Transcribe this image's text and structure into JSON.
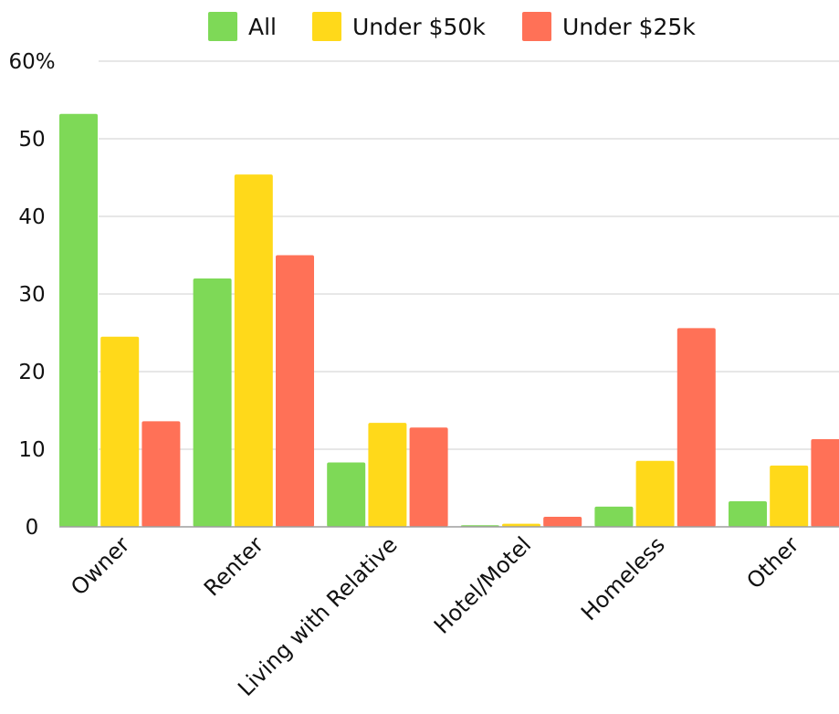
{
  "chart_data": {
    "type": "bar",
    "title": "",
    "xlabel": "",
    "ylabel": "",
    "categories": [
      "Owner",
      "Renter",
      "Living with Relative",
      "Hotel/Motel",
      "Homeless",
      "Other"
    ],
    "series": [
      {
        "name": "All",
        "color": "#7ED957",
        "values": [
          53.2,
          32.0,
          8.3,
          0.2,
          2.6,
          3.3
        ]
      },
      {
        "name": "Under $50k",
        "color": "#FFD91A",
        "values": [
          24.5,
          45.4,
          13.4,
          0.4,
          8.5,
          7.9
        ]
      },
      {
        "name": "Under $25k",
        "color": "#FF7157",
        "values": [
          13.6,
          35.0,
          12.8,
          1.3,
          25.6,
          11.3
        ]
      }
    ],
    "y_ticks": [
      {
        "value": 0,
        "label": "0"
      },
      {
        "value": 10,
        "label": "10"
      },
      {
        "value": 20,
        "label": "20"
      },
      {
        "value": 30,
        "label": "30"
      },
      {
        "value": 40,
        "label": "40"
      },
      {
        "value": 50,
        "label": "50"
      },
      {
        "value": 60,
        "label": "60%"
      }
    ],
    "ylim": [
      0,
      60
    ],
    "grid": true,
    "legend_position": "top-center"
  }
}
